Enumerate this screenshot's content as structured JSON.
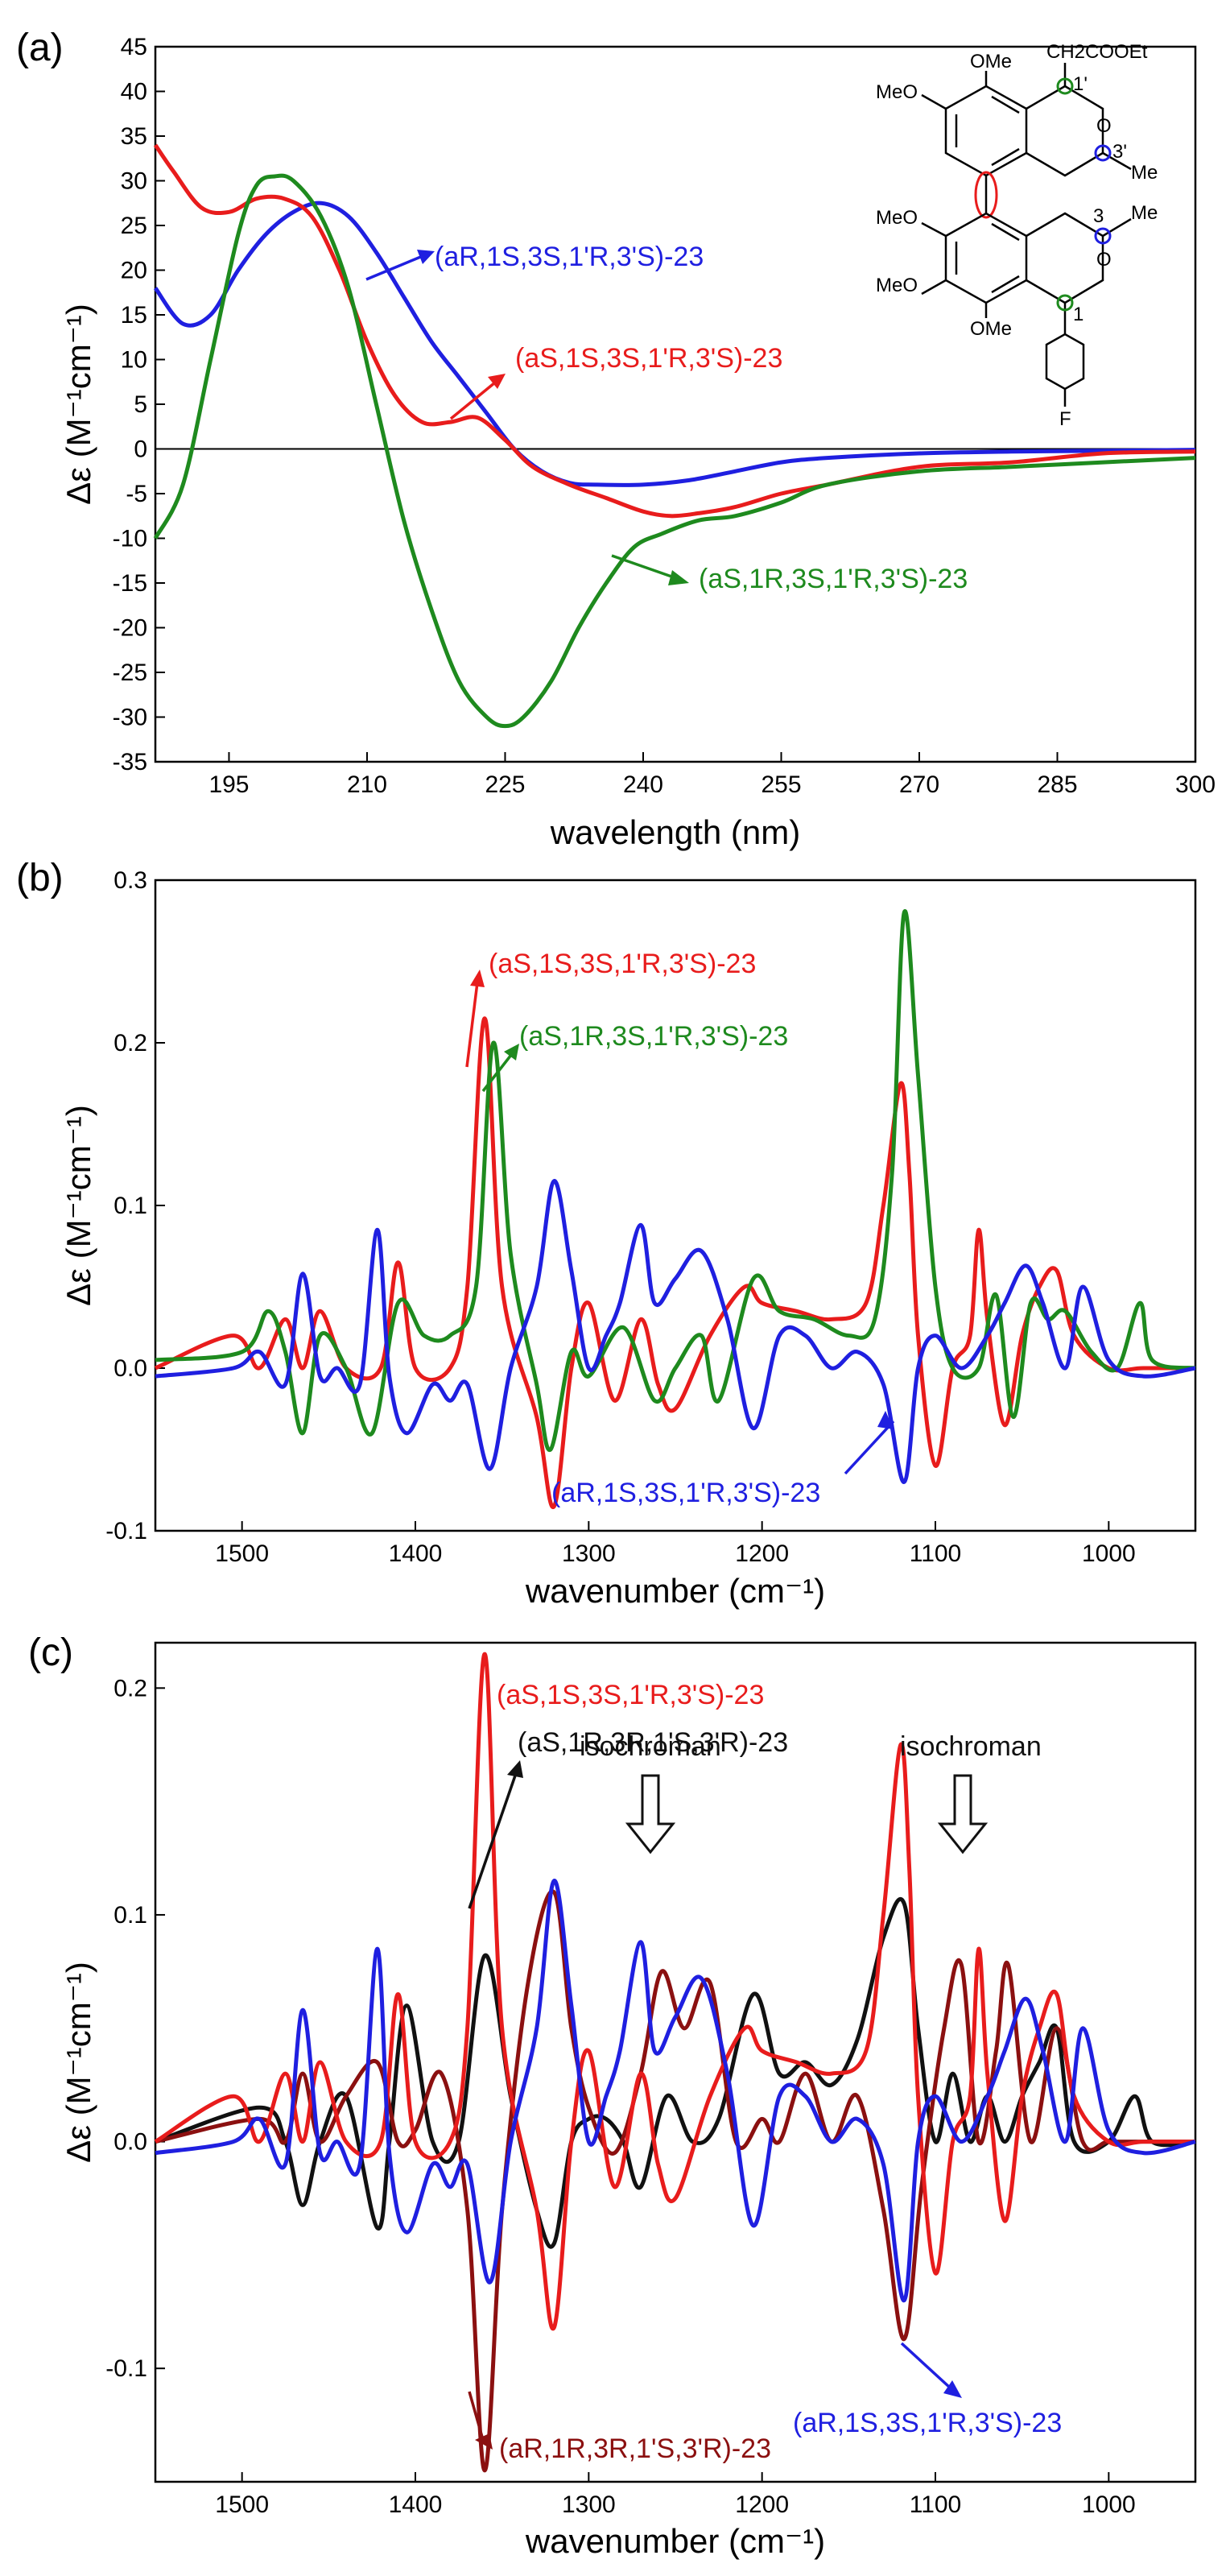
{
  "chart_data": [
    {
      "type": "line",
      "panel_label": "(a)",
      "xlabel": "wavelength (nm)",
      "ylabel": "Δε (M⁻¹cm⁻¹)",
      "xlim": [
        187,
        300
      ],
      "ylim": [
        -35,
        45
      ],
      "xticks": [
        195,
        210,
        225,
        240,
        255,
        270,
        285,
        300
      ],
      "yticks": [
        -35,
        -30,
        -25,
        -20,
        -15,
        -10,
        -5,
        0,
        5,
        10,
        15,
        20,
        25,
        30,
        35,
        40,
        45
      ],
      "zero_line": true,
      "series": [
        {
          "name": "(aR,1S,3S,1'R,3'S)-23",
          "color": "#1f1fe0",
          "x": [
            187,
            190,
            193,
            196,
            199,
            202,
            205,
            208,
            211,
            214,
            217,
            220,
            223,
            226,
            229,
            232,
            235,
            240,
            245,
            250,
            255,
            260,
            270,
            280,
            290,
            300
          ],
          "y": [
            18,
            14,
            15,
            20,
            24,
            26.5,
            27.5,
            26,
            22,
            17,
            12,
            8,
            4,
            0,
            -2.5,
            -3.8,
            -4,
            -4,
            -3.5,
            -2.5,
            -1.5,
            -1,
            -0.5,
            -0.3,
            -0.2,
            -0.1
          ]
        },
        {
          "name": "(aS,1S,3S,1'R,3'S)-23",
          "color": "#e81c1c",
          "x": [
            187,
            189,
            192,
            195,
            198,
            201,
            204,
            207,
            210,
            213,
            216,
            219,
            222,
            225,
            228,
            232,
            236,
            240,
            243,
            246,
            250,
            255,
            260,
            270,
            280,
            290,
            300
          ],
          "y": [
            34,
            31,
            27,
            26.5,
            28,
            28,
            26,
            20,
            12,
            6,
            3,
            3,
            3.5,
            1,
            -2,
            -4,
            -5.5,
            -7,
            -7.5,
            -7.2,
            -6.5,
            -5,
            -4,
            -2,
            -1.5,
            -0.5,
            -0.3
          ]
        },
        {
          "name": "(aS,1R,3S,1'R,3'S)-23",
          "color": "#1e8a1e",
          "x": [
            187,
            190,
            193,
            196,
            198,
            200,
            202,
            205,
            208,
            211,
            214,
            217,
            220,
            223,
            225,
            227,
            230,
            233,
            236,
            239,
            242,
            246,
            250,
            255,
            260,
            270,
            280,
            290,
            300
          ],
          "y": [
            -10,
            -4,
            10,
            24,
            29.5,
            30.5,
            30,
            26,
            18,
            5,
            -8,
            -18,
            -26,
            -30,
            -31,
            -30,
            -26,
            -20,
            -15,
            -11,
            -9.5,
            -8,
            -7.5,
            -6,
            -4,
            -2.5,
            -2,
            -1.5,
            -1
          ]
        }
      ],
      "annotations": [
        "(aR,1S,3S,1'R,3'S)-23",
        "(aS,1S,3S,1'R,3'S)-23",
        "(aS,1R,3S,1'R,3'S)-23"
      ],
      "structure_labels": [
        "OMe",
        "CH2COOEt",
        "MeO",
        "1'",
        "O",
        "3'",
        "Me",
        "3",
        "Me",
        "MeO",
        "O",
        "MeO",
        "1",
        "OMe",
        "F"
      ]
    },
    {
      "type": "line",
      "panel_label": "(b)",
      "xlabel": "wavenumber (cm⁻¹)",
      "ylabel": "Δε (M⁻¹cm⁻¹)",
      "xlim": [
        1550,
        950
      ],
      "ylim": [
        -0.1,
        0.3
      ],
      "xticks": [
        1500,
        1400,
        1300,
        1200,
        1100,
        1000
      ],
      "yticks": [
        -0.1,
        0.0,
        0.1,
        0.2,
        0.3
      ],
      "series": [
        {
          "name": "(aS,1S,3S,1'R,3'S)-23",
          "color": "#e81c1c",
          "x": [
            1550,
            1505,
            1490,
            1475,
            1465,
            1455,
            1440,
            1420,
            1410,
            1400,
            1380,
            1370,
            1360,
            1350,
            1330,
            1320,
            1310,
            1300,
            1285,
            1270,
            1260,
            1250,
            1230,
            1210,
            1200,
            1180,
            1160,
            1140,
            1130,
            1120,
            1115,
            1110,
            1100,
            1090,
            1080,
            1075,
            1070,
            1060,
            1050,
            1040,
            1030,
            1020,
            1000,
            980,
            950
          ],
          "y": [
            0.0,
            0.02,
            0.0,
            0.03,
            0.0,
            0.035,
            0.0,
            0.0,
            0.065,
            0.0,
            0.0,
            0.05,
            0.215,
            0.05,
            -0.03,
            -0.085,
            0.0,
            0.04,
            -0.02,
            0.03,
            -0.01,
            -0.025,
            0.02,
            0.05,
            0.04,
            0.035,
            0.03,
            0.04,
            0.1,
            0.175,
            0.12,
            0.02,
            -0.06,
            0.0,
            0.02,
            0.085,
            0.03,
            -0.035,
            0.02,
            0.05,
            0.06,
            0.02,
            0.0,
            0.0,
            0.0
          ]
        },
        {
          "name": "(aS,1R,3S,1'R,3'S)-23",
          "color": "#1e8a1e",
          "x": [
            1550,
            1500,
            1485,
            1475,
            1465,
            1455,
            1440,
            1425,
            1410,
            1395,
            1380,
            1365,
            1355,
            1345,
            1330,
            1322,
            1310,
            1300,
            1280,
            1262,
            1250,
            1235,
            1225,
            1205,
            1190,
            1170,
            1150,
            1135,
            1125,
            1118,
            1110,
            1100,
            1090,
            1075,
            1065,
            1055,
            1045,
            1035,
            1025,
            1010,
            995,
            982,
            975,
            950
          ],
          "y": [
            0.005,
            0.01,
            0.035,
            0.01,
            -0.04,
            0.02,
            0.0,
            -0.04,
            0.04,
            0.02,
            0.02,
            0.05,
            0.2,
            0.07,
            -0.01,
            -0.05,
            0.01,
            -0.005,
            0.025,
            -0.02,
            0.0,
            0.02,
            -0.02,
            0.055,
            0.035,
            0.03,
            0.02,
            0.03,
            0.12,
            0.28,
            0.18,
            0.05,
            0.0,
            0.0,
            0.045,
            -0.03,
            0.04,
            0.03,
            0.035,
            0.01,
            0.0,
            0.04,
            0.005,
            0.0
          ]
        },
        {
          "name": "(aR,1S,3S,1'R,3'S)-23",
          "color": "#1f1fe0",
          "x": [
            1550,
            1505,
            1490,
            1475,
            1465,
            1455,
            1445,
            1432,
            1422,
            1415,
            1405,
            1390,
            1380,
            1370,
            1357,
            1345,
            1330,
            1320,
            1310,
            1300,
            1290,
            1282,
            1270,
            1262,
            1250,
            1235,
            1220,
            1205,
            1190,
            1175,
            1160,
            1145,
            1130,
            1118,
            1110,
            1100,
            1085,
            1070,
            1060,
            1048,
            1038,
            1025,
            1015,
            1000,
            980,
            950
          ],
          "y": [
            -0.005,
            0.0,
            0.01,
            -0.01,
            0.058,
            -0.005,
            0.0,
            -0.01,
            0.085,
            -0.005,
            -0.04,
            -0.01,
            -0.02,
            -0.01,
            -0.062,
            0.0,
            0.05,
            0.115,
            0.06,
            0.0,
            0.02,
            0.04,
            0.088,
            0.04,
            0.055,
            0.072,
            0.03,
            -0.037,
            0.02,
            0.02,
            0.0,
            0.01,
            -0.01,
            -0.07,
            0.0,
            0.02,
            0.0,
            0.02,
            0.04,
            0.063,
            0.04,
            0.0,
            0.05,
            0.005,
            -0.005,
            0.0
          ]
        }
      ],
      "annotations": [
        "(aS,1S,3S,1'R,3'S)-23",
        "(aS,1R,3S,1'R,3'S)-23",
        "(aR,1S,3S,1'R,3'S)-23"
      ]
    },
    {
      "type": "line",
      "panel_label": "(c)",
      "xlabel": "wavenumber (cm⁻¹)",
      "ylabel": "Δε (M⁻¹cm⁻¹)",
      "xlim": [
        1550,
        950
      ],
      "ylim": [
        -0.15,
        0.22
      ],
      "xticks": [
        1500,
        1400,
        1300,
        1200,
        1100,
        1000
      ],
      "yticks": [
        -0.1,
        0.0,
        0.1,
        0.2
      ],
      "series": [
        {
          "name": "(aS,1R,3R,1'S,3'R)-23",
          "color": "#111111",
          "x": [
            1550,
            1490,
            1475,
            1465,
            1455,
            1440,
            1422,
            1415,
            1405,
            1390,
            1375,
            1360,
            1345,
            1330,
            1320,
            1310,
            1300,
            1290,
            1280,
            1270,
            1255,
            1240,
            1225,
            1205,
            1190,
            1175,
            1160,
            1145,
            1130,
            1118,
            1110,
            1100,
            1090,
            1080,
            1070,
            1060,
            1050,
            1040,
            1030,
            1020,
            1000,
            985,
            975,
            950
          ],
          "y": [
            0.0,
            0.015,
            0.0,
            -0.028,
            0.0,
            0.02,
            -0.038,
            0.0,
            0.06,
            0.0,
            0.0,
            0.082,
            0.02,
            -0.03,
            -0.045,
            0.0,
            0.01,
            0.01,
            0.0,
            -0.02,
            0.02,
            0.0,
            0.01,
            0.065,
            0.03,
            0.035,
            0.025,
            0.045,
            0.09,
            0.105,
            0.05,
            0.0,
            0.03,
            0.0,
            0.02,
            0.0,
            0.02,
            0.035,
            0.05,
            0.0,
            0.0,
            0.02,
            0.0,
            0.0
          ]
        },
        {
          "name": "(aR,1R,3R,1'S,3'R)-23",
          "color": "#8b1010",
          "x": [
            1550,
            1490,
            1475,
            1465,
            1455,
            1440,
            1422,
            1410,
            1400,
            1385,
            1370,
            1360,
            1350,
            1335,
            1320,
            1310,
            1300,
            1285,
            1270,
            1258,
            1245,
            1230,
            1215,
            1200,
            1190,
            1175,
            1160,
            1145,
            1130,
            1118,
            1108,
            1095,
            1085,
            1075,
            1065,
            1058,
            1045,
            1030,
            1015,
            1000,
            980,
            950
          ],
          "y": [
            0.0,
            0.01,
            0.0,
            0.03,
            0.0,
            0.02,
            0.035,
            0.0,
            0.005,
            0.03,
            -0.03,
            -0.145,
            -0.03,
            0.07,
            0.11,
            0.05,
            0.015,
            -0.005,
            0.03,
            0.075,
            0.05,
            0.07,
            0.0,
            0.01,
            0.0,
            0.03,
            0.0,
            0.02,
            -0.03,
            -0.087,
            -0.02,
            0.05,
            0.078,
            0.0,
            0.04,
            0.078,
            0.0,
            0.05,
            0.0,
            0.0,
            0.0,
            0.0
          ]
        },
        {
          "name": "(aS,1S,3S,1'R,3'S)-23",
          "color": "#e81c1c",
          "x": [
            1550,
            1505,
            1490,
            1475,
            1465,
            1455,
            1440,
            1420,
            1410,
            1400,
            1380,
            1370,
            1360,
            1350,
            1330,
            1320,
            1310,
            1300,
            1285,
            1270,
            1260,
            1250,
            1230,
            1210,
            1200,
            1180,
            1160,
            1140,
            1130,
            1120,
            1115,
            1110,
            1100,
            1090,
            1080,
            1075,
            1070,
            1060,
            1050,
            1040,
            1030,
            1020,
            1000,
            980,
            950
          ],
          "y": [
            0.0,
            0.02,
            0.0,
            0.03,
            0.0,
            0.035,
            0.0,
            0.0,
            0.065,
            0.0,
            0.0,
            0.05,
            0.215,
            0.05,
            -0.03,
            -0.082,
            0.0,
            0.04,
            -0.02,
            0.03,
            -0.01,
            -0.025,
            0.02,
            0.05,
            0.04,
            0.035,
            0.03,
            0.04,
            0.1,
            0.175,
            0.12,
            0.02,
            -0.058,
            0.0,
            0.02,
            0.085,
            0.03,
            -0.035,
            0.02,
            0.05,
            0.065,
            0.02,
            0.0,
            0.0,
            0.0
          ]
        },
        {
          "name": "(aR,1S,3S,1'R,3'S)-23",
          "color": "#1f1fe0",
          "x": [
            1550,
            1505,
            1490,
            1475,
            1465,
            1455,
            1445,
            1432,
            1422,
            1415,
            1405,
            1390,
            1380,
            1370,
            1357,
            1345,
            1330,
            1320,
            1310,
            1300,
            1290,
            1282,
            1270,
            1262,
            1250,
            1235,
            1220,
            1205,
            1190,
            1175,
            1160,
            1145,
            1130,
            1118,
            1110,
            1100,
            1085,
            1070,
            1060,
            1048,
            1038,
            1025,
            1015,
            1000,
            980,
            950
          ],
          "y": [
            -0.005,
            0.0,
            0.01,
            -0.01,
            0.058,
            -0.005,
            0.0,
            -0.01,
            0.085,
            -0.005,
            -0.04,
            -0.01,
            -0.02,
            -0.01,
            -0.062,
            0.0,
            0.05,
            0.115,
            0.06,
            0.0,
            0.02,
            0.04,
            0.088,
            0.04,
            0.055,
            0.072,
            0.03,
            -0.037,
            0.02,
            0.02,
            0.0,
            0.01,
            -0.01,
            -0.07,
            0.0,
            0.02,
            0.0,
            0.02,
            0.04,
            0.063,
            0.04,
            0.0,
            0.05,
            0.005,
            -0.005,
            0.0
          ]
        }
      ],
      "annotations": [
        "(aS,1S,3S,1'R,3'S)-23",
        "(aS,1R,3R,1'S,3'R)-23",
        "(aR,1R,3R,1'S,3'R)-23",
        "(aR,1S,3S,1'R,3'S)-23",
        "isochroman",
        "isochroman"
      ]
    }
  ]
}
